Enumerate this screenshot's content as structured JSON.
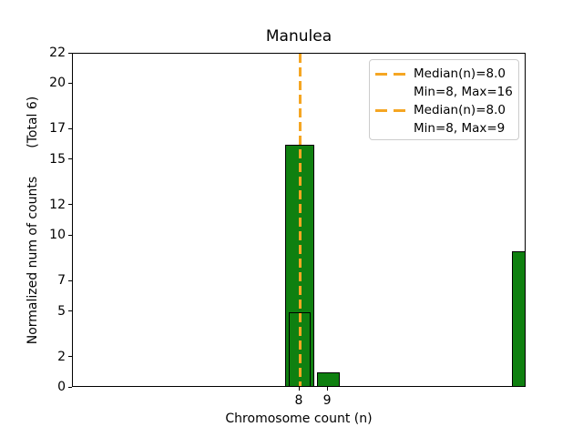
{
  "title": "Manulea",
  "axes": {
    "xlabel": "Chromosome count (n)",
    "ylabel": "Normalized num of counts       (Total 6)",
    "x_ticks": [
      8,
      9
    ],
    "y_ticks": [
      0,
      2,
      5,
      7,
      10,
      12,
      15,
      17,
      20,
      22
    ],
    "xlim": [
      0,
      16
    ],
    "ylim": [
      0,
      22
    ]
  },
  "legend": {
    "entries": [
      {
        "has_swatch": true,
        "label": "Median(n)=8.0"
      },
      {
        "has_swatch": false,
        "label": "Min=8, Max=16"
      },
      {
        "has_swatch": true,
        "label": "Median(n)=8.0"
      },
      {
        "has_swatch": false,
        "label": "Min=8, Max=9"
      }
    ]
  },
  "chart_data": {
    "type": "bar",
    "title": "Manulea",
    "xlabel": "Chromosome count (n)",
    "ylabel": "Normalized num of counts (Total 6)",
    "xlim": [
      0,
      16
    ],
    "ylim": [
      0,
      22
    ],
    "x_ticks": [
      8,
      9
    ],
    "y_ticks": [
      0,
      2,
      5,
      7,
      10,
      12,
      15,
      17,
      20,
      22
    ],
    "grid": false,
    "legend_position": "upper right",
    "series": [
      {
        "name": "histogram-full-range",
        "bar_width": 1.0,
        "points": [
          {
            "x": 8,
            "y": 16
          },
          {
            "x": 16,
            "y": 9
          }
        ],
        "median_x": 8.0,
        "min": 8,
        "max": 16,
        "legend_label": "Median(n)=8.0\nMin=8, Max=16"
      },
      {
        "name": "histogram-subset",
        "bar_width": 0.8,
        "points": [
          {
            "x": 8,
            "y": 5
          },
          {
            "x": 9,
            "y": 1
          }
        ],
        "median_x": 8.0,
        "min": 8,
        "max": 9,
        "legend_label": "Median(n)=8.0\nMin=8, Max=9"
      }
    ],
    "colors": {
      "bar_fill": "#0f8010",
      "bar_edge": "#000000",
      "median_line": "#f5a623",
      "legend_border": "#cccccc",
      "axis": "#000000"
    }
  }
}
